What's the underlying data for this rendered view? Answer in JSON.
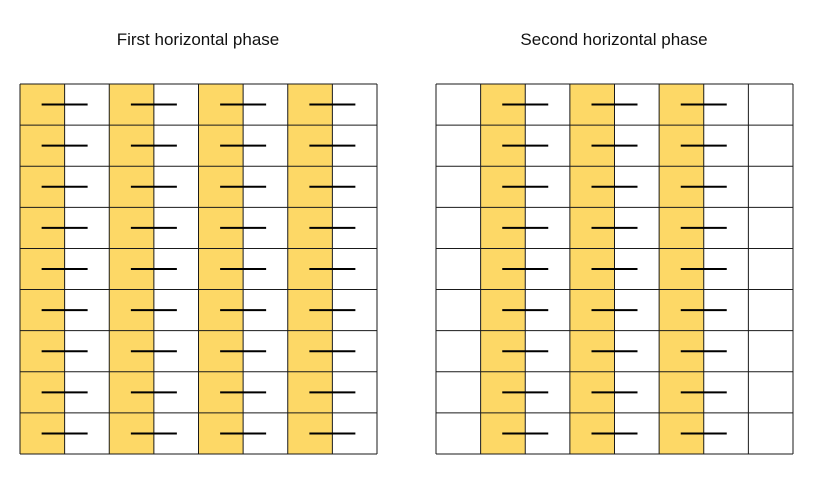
{
  "colors": {
    "highlight": "#fdd866",
    "grid_line": "#1a1a1a",
    "dash": "#000000",
    "background": "#ffffff"
  },
  "panels": [
    {
      "title": "First horizontal phase",
      "rows": 9,
      "cols": 8,
      "highlighted_columns": [
        0,
        2,
        4,
        6
      ],
      "dash_columns": [
        0,
        2,
        4,
        6
      ],
      "dash_symbol": "horizontal-line"
    },
    {
      "title": "Second horizontal phase",
      "rows": 9,
      "cols": 8,
      "highlighted_columns": [
        1,
        3,
        5
      ],
      "dash_columns": [
        1,
        3,
        5
      ],
      "dash_symbol": "horizontal-line"
    }
  ]
}
